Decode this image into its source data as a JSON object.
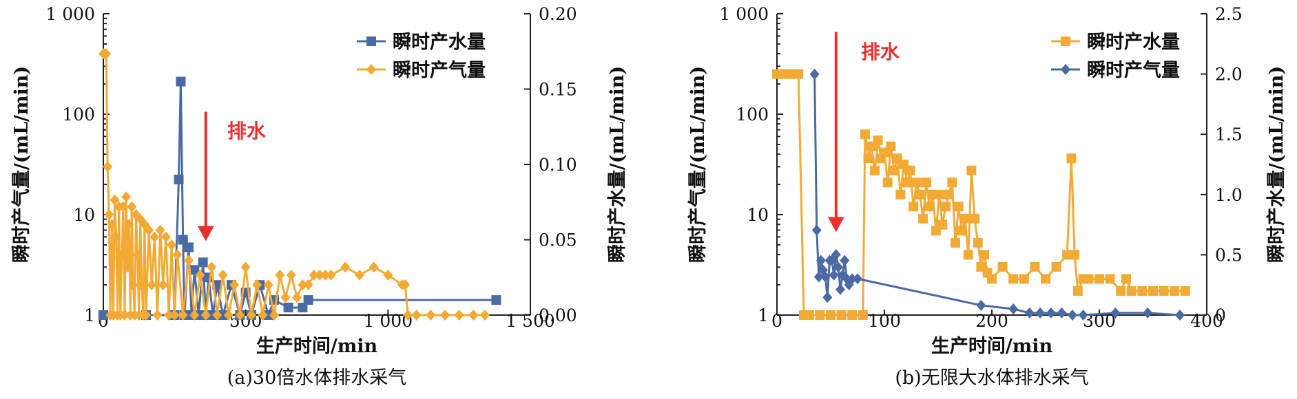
{
  "colors": {
    "blue": "#4a6aa5",
    "orange": "#f2aa35",
    "red": "#e8312f"
  },
  "chart_data": [
    {
      "type": "line",
      "caption": "(a)30倍水体排水采气",
      "xlabel": "生产时间/min",
      "ylabel_left": "瞬时产气量/(mL/min)",
      "ylabel_right": "瞬时产水量/(mL/min)",
      "x_ticks": [
        "0",
        "500",
        "1 000",
        "1 500"
      ],
      "y_left_ticks": [
        "1",
        "10",
        "100",
        "1 000"
      ],
      "y_right_ticks": [
        "0.00",
        "0.05",
        "0.10",
        "0.15",
        "0.20"
      ],
      "xlim": [
        0,
        1500
      ],
      "ylim_left": [
        1,
        1000
      ],
      "y_left_scale": "log",
      "ylim_right": [
        0,
        0.2
      ],
      "legend": [
        "瞬时产水量",
        "瞬时产气量"
      ],
      "legend_position": "top-right",
      "annotation": {
        "text": "排水",
        "arrow_x": 360,
        "arrow_from_y": 0.13,
        "arrow_to_y": 0.05
      },
      "series": [
        {
          "name": "瞬时产水量",
          "axis": "right",
          "marker": "square",
          "color": "#4a6aa5",
          "x": [
            0,
            150,
            250,
            265,
            272,
            280,
            285,
            300,
            310,
            320,
            335,
            350,
            360,
            370,
            385,
            400,
            420,
            450,
            480,
            500,
            520,
            550,
            580,
            600,
            650,
            700,
            720,
            1380
          ],
          "y": [
            0,
            0,
            0,
            0.09,
            0.155,
            0.05,
            0.0,
            0.045,
            0.0,
            0.03,
            0.0,
            0.035,
            0.0,
            0.025,
            0.0,
            0.02,
            0.0,
            0.02,
            0.0,
            0.015,
            0.0,
            0.02,
            0.0,
            0.01,
            0.005,
            0.005,
            0.01,
            0.01
          ]
        },
        {
          "name": "瞬时产气量",
          "axis": "left",
          "marker": "diamond",
          "color": "#f2aa35",
          "x": [
            0,
            5,
            10,
            15,
            20,
            25,
            30,
            35,
            40,
            45,
            50,
            55,
            60,
            65,
            70,
            75,
            80,
            85,
            90,
            95,
            100,
            105,
            110,
            115,
            120,
            125,
            130,
            135,
            140,
            145,
            150,
            160,
            170,
            180,
            190,
            200,
            210,
            220,
            230,
            240,
            250,
            260,
            280,
            300,
            320,
            340,
            360,
            380,
            400,
            420,
            440,
            460,
            480,
            500,
            520,
            540,
            560,
            580,
            600,
            620,
            640,
            660,
            680,
            700,
            720,
            740,
            760,
            780,
            800,
            850,
            900,
            950,
            1000,
            1050,
            1060,
            1070,
            1100,
            1150,
            1200,
            1250,
            1300,
            1340
          ],
          "y": [
            400,
            400,
            400,
            30,
            10,
            1,
            8,
            1,
            14,
            6,
            1,
            12,
            1,
            4,
            12,
            1,
            15,
            3,
            8,
            1,
            12,
            2,
            1,
            10,
            4,
            1,
            9,
            2,
            1,
            8,
            1,
            7,
            2,
            6,
            1,
            7,
            2,
            6,
            1,
            5,
            1,
            4,
            1,
            3.5,
            1,
            2.5,
            1,
            3,
            1,
            2.5,
            1,
            2,
            1,
            3,
            1,
            2,
            1,
            2,
            1,
            2.5,
            1.5,
            2.5,
            1.5,
            2,
            2,
            2.5,
            2.5,
            2.5,
            2.5,
            3,
            2.5,
            3,
            2.5,
            2,
            2,
            1,
            1,
            1,
            1,
            1,
            1,
            1
          ]
        }
      ]
    },
    {
      "type": "line",
      "caption": "(b)无限大水体排水采气",
      "xlabel": "生产时间/min",
      "ylabel_left": "瞬时产气量/(mL/min)",
      "ylabel_right": "瞬时产水量/(mL/min)",
      "x_ticks": [
        "0",
        "100",
        "200",
        "300",
        "400"
      ],
      "y_left_ticks": [
        "1",
        "10",
        "100",
        "1 000"
      ],
      "y_right_ticks": [
        "0",
        "0.5",
        "1.0",
        "1.5",
        "2.0",
        "2.5"
      ],
      "xlim": [
        0,
        400
      ],
      "ylim_left": [
        1,
        1000
      ],
      "y_left_scale": "log",
      "ylim_right": [
        0,
        2.5
      ],
      "legend": [
        "瞬时产水量",
        "瞬时产气量"
      ],
      "legend_position": "top-right",
      "annotation": {
        "text": "排水",
        "arrow_x": 55,
        "arrow_from_y": 2.9,
        "arrow_to_y": 0.7
      },
      "series": [
        {
          "name": "瞬时产水量",
          "axis": "right",
          "marker": "square",
          "color": "#f2aa35",
          "x": [
            0,
            5,
            10,
            15,
            20,
            25,
            30,
            40,
            50,
            60,
            70,
            80,
            82,
            85,
            88,
            91,
            94,
            97,
            100,
            103,
            106,
            109,
            112,
            115,
            118,
            121,
            124,
            127,
            130,
            133,
            136,
            139,
            142,
            145,
            148,
            151,
            154,
            157,
            160,
            163,
            166,
            169,
            172,
            175,
            178,
            181,
            184,
            187,
            190,
            193,
            196,
            200,
            210,
            220,
            230,
            240,
            250,
            260,
            270,
            274,
            277,
            280,
            285,
            290,
            300,
            310,
            320,
            325,
            330,
            340,
            350,
            360,
            370,
            380
          ],
          "y": [
            2.0,
            2.0,
            2.0,
            2.0,
            2.0,
            0,
            0,
            0,
            0,
            0,
            0,
            0,
            1.5,
            1.3,
            1.4,
            1.2,
            1.45,
            1.3,
            1.35,
            1.1,
            1.4,
            1.2,
            1.3,
            1.0,
            1.25,
            1.1,
            1.2,
            0.9,
            1.1,
            1.0,
            0.8,
            1.1,
            0.9,
            1.0,
            0.7,
            1.0,
            0.75,
            0.9,
            1.0,
            1.1,
            0.6,
            0.9,
            0.7,
            0.8,
            0.5,
            1.2,
            0.8,
            0.6,
            0.4,
            0.5,
            0.35,
            0.3,
            0.4,
            0.3,
            0.3,
            0.4,
            0.3,
            0.4,
            0.5,
            1.3,
            0.5,
            0.2,
            0.3,
            0.3,
            0.3,
            0.3,
            0.2,
            0.3,
            0.2,
            0.2,
            0.2,
            0.2,
            0.2,
            0.2
          ]
        },
        {
          "name": "瞬时产气量",
          "axis": "left",
          "marker": "diamond",
          "color": "#4a6aa5",
          "x": [
            35,
            37,
            39,
            41,
            43,
            45,
            47,
            49,
            51,
            53,
            55,
            57,
            59,
            61,
            63,
            65,
            67,
            70,
            75,
            190,
            220,
            235,
            245,
            255,
            265,
            275,
            285,
            315,
            345,
            375
          ],
          "y": [
            250,
            7,
            2.4,
            3.5,
            2.8,
            2.4,
            1.5,
            3.5,
            3.5,
            2.5,
            4,
            3,
            1.8,
            2.5,
            3.5,
            2.3,
            2,
            2.3,
            2.3,
            1.25,
            1.15,
            1.05,
            1.05,
            1.05,
            1.05,
            1.0,
            1.0,
            1.05,
            1.05,
            1.0
          ]
        }
      ]
    }
  ]
}
